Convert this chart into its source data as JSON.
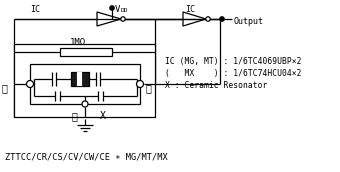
{
  "bg_color": "#ffffff",
  "line_color": "#000000",
  "info_line1": "IC (MG, MT) : 1/6TC4069UBP×2",
  "info_line2": "(   MX    ) : 1/6TC74HCU04×2",
  "info_line3": "X : Ceramic Resonator",
  "bottom_label": "ZTTCC/CR/CS/CV/CW/CE ∗ MG/MT/MX",
  "figsize": [
    3.4,
    1.72
  ],
  "dpi": 100
}
